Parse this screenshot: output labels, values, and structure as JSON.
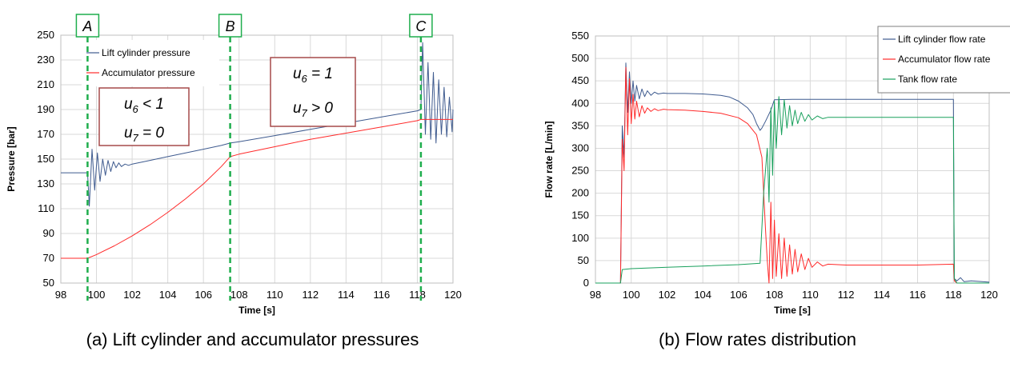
{
  "colors": {
    "lift": "#3f5b8f",
    "accumulator": "#ff2a2a",
    "tank": "#19a05c",
    "marker": "#1fae4d",
    "note_border": "#a64a4a",
    "grid": "#d9d9d9"
  },
  "chart_data": [
    {
      "type": "line",
      "xlabel": "Time [s]",
      "ylabel": "Pressure [bar]",
      "xlim": [
        98,
        120
      ],
      "ylim": [
        50,
        250
      ],
      "xticks": [
        98,
        100,
        102,
        104,
        106,
        108,
        110,
        112,
        114,
        116,
        118,
        120
      ],
      "yticks": [
        50,
        70,
        90,
        110,
        130,
        150,
        170,
        190,
        210,
        230,
        250
      ],
      "grid": true,
      "legend_position": "top-left",
      "markers": [
        {
          "label": "A",
          "x": 99.5
        },
        {
          "label": "B",
          "x": 107.5
        },
        {
          "label": "C",
          "x": 118.2
        }
      ],
      "annotations": [
        {
          "lines": [
            {
              "var": "u",
              "sub": "6",
              "rest": " < 1"
            },
            {
              "var": "u",
              "sub": "7",
              "rest": " = 0"
            }
          ]
        },
        {
          "lines": [
            {
              "var": "u",
              "sub": "6",
              "rest": " = 1"
            },
            {
              "var": "u",
              "sub": "7",
              "rest": " > 0"
            }
          ]
        }
      ],
      "series": [
        {
          "name": "Lift cylinder pressure",
          "color": "#3f5b8f",
          "x": [
            98,
            99.5,
            99.6,
            99.75,
            99.9,
            100.05,
            100.2,
            100.35,
            100.5,
            100.65,
            100.8,
            100.95,
            101.1,
            101.25,
            101.4,
            101.6,
            101.8,
            102,
            103,
            104,
            105,
            106,
            107,
            107.5,
            108,
            110,
            112,
            114,
            116,
            118,
            118.2,
            118.3,
            118.45,
            118.6,
            118.75,
            118.9,
            119.05,
            119.2,
            119.35,
            119.5,
            119.65,
            119.8,
            119.95,
            120
          ],
          "y": [
            139,
            139,
            112,
            158,
            125,
            155,
            132,
            150,
            137,
            149,
            140,
            148,
            143,
            147,
            144,
            146,
            145,
            146,
            149,
            152,
            155,
            158,
            161,
            163,
            164,
            169,
            174,
            179,
            184,
            189,
            190,
            244,
            170,
            228,
            166,
            220,
            163,
            214,
            170,
            208,
            168,
            200,
            172,
            190
          ]
        },
        {
          "name": "Accumulator pressure",
          "color": "#ff2a2a",
          "x": [
            98,
            99.5,
            100,
            101,
            102,
            103,
            104,
            105,
            106,
            107,
            107.5,
            108,
            110,
            112,
            114,
            116,
            118,
            118.2,
            120
          ],
          "y": [
            70,
            70,
            73,
            80,
            88,
            97,
            107,
            118,
            130,
            144,
            152,
            154,
            160,
            166,
            171,
            176,
            181,
            182,
            182
          ]
        }
      ]
    },
    {
      "type": "line",
      "xlabel": "Time [s]",
      "ylabel": "Flow rate [L/min]",
      "xlim": [
        98,
        120
      ],
      "ylim": [
        0,
        550
      ],
      "xticks": [
        98,
        100,
        102,
        104,
        106,
        108,
        110,
        112,
        114,
        116,
        118,
        120
      ],
      "yticks": [
        0,
        50,
        100,
        150,
        200,
        250,
        300,
        350,
        400,
        450,
        500,
        550
      ],
      "grid": true,
      "legend_position": "top-right",
      "series": [
        {
          "name": "Lift cylinder flow rate",
          "color": "#3f5b8f",
          "x": [
            98,
            99.4,
            99.5,
            99.6,
            99.7,
            99.8,
            99.9,
            100.0,
            100.1,
            100.2,
            100.3,
            100.45,
            100.6,
            100.75,
            100.9,
            101.1,
            101.3,
            101.5,
            101.8,
            102,
            103,
            104,
            105,
            105.5,
            106,
            106.5,
            106.8,
            107.0,
            107.2,
            107.3,
            107.5,
            107.8,
            108,
            109,
            110,
            112,
            114,
            116,
            118,
            118.05,
            118.2,
            118.4,
            118.6,
            119,
            120
          ],
          "y": [
            0,
            0,
            350,
            280,
            490,
            380,
            470,
            400,
            450,
            405,
            440,
            410,
            432,
            415,
            428,
            418,
            425,
            421,
            423,
            422,
            422,
            421,
            418,
            414,
            405,
            390,
            375,
            355,
            340,
            345,
            360,
            385,
            408,
            409,
            409,
            409,
            409,
            409,
            409,
            10,
            5,
            12,
            3,
            5,
            2
          ]
        },
        {
          "name": "Accumulator flow rate",
          "color": "#ff2a2a",
          "x": [
            98,
            99.4,
            99.5,
            99.6,
            99.7,
            99.8,
            99.9,
            100.0,
            100.1,
            100.2,
            100.3,
            100.45,
            100.6,
            100.75,
            100.9,
            101.1,
            101.3,
            101.5,
            101.8,
            102,
            103,
            104,
            105,
            106,
            106.5,
            107,
            107.3,
            107.5,
            107.6,
            107.7,
            107.8,
            107.9,
            108.0,
            108.1,
            108.25,
            108.4,
            108.55,
            108.7,
            108.85,
            109.0,
            109.15,
            109.3,
            109.5,
            109.7,
            109.9,
            110.1,
            110.4,
            110.7,
            111,
            112,
            114,
            116,
            118,
            118.05,
            118.2,
            120
          ],
          "y": [
            0,
            0,
            320,
            250,
            480,
            330,
            455,
            355,
            420,
            365,
            405,
            370,
            395,
            378,
            390,
            382,
            388,
            384,
            387,
            386,
            385,
            382,
            378,
            368,
            355,
            330,
            280,
            120,
            50,
            0,
            180,
            10,
            140,
            15,
            110,
            10,
            100,
            15,
            85,
            20,
            75,
            25,
            65,
            30,
            55,
            35,
            47,
            38,
            42,
            40,
            40,
            40,
            42,
            5,
            0,
            0
          ]
        },
        {
          "name": "Tank flow rate",
          "color": "#19a05c",
          "x": [
            98,
            99.4,
            99.5,
            100,
            102,
            104,
            106,
            107.2,
            107.4,
            107.6,
            107.7,
            107.8,
            107.9,
            108.0,
            108.1,
            108.25,
            108.4,
            108.55,
            108.7,
            108.85,
            109.0,
            109.15,
            109.3,
            109.5,
            109.7,
            109.9,
            110.1,
            110.4,
            110.7,
            111,
            112,
            114,
            116,
            118,
            118.05,
            118.2,
            120
          ],
          "y": [
            0,
            0,
            30,
            32,
            35,
            38,
            41,
            44,
            200,
            300,
            180,
            390,
            240,
            405,
            300,
            415,
            330,
            408,
            345,
            395,
            350,
            385,
            355,
            380,
            360,
            375,
            363,
            372,
            366,
            369,
            369,
            369,
            369,
            369,
            10,
            0,
            0
          ]
        }
      ]
    }
  ],
  "captions": {
    "a": "(a) Lift cylinder and accumulator pressures",
    "b": "(b) Flow rates distribution"
  }
}
